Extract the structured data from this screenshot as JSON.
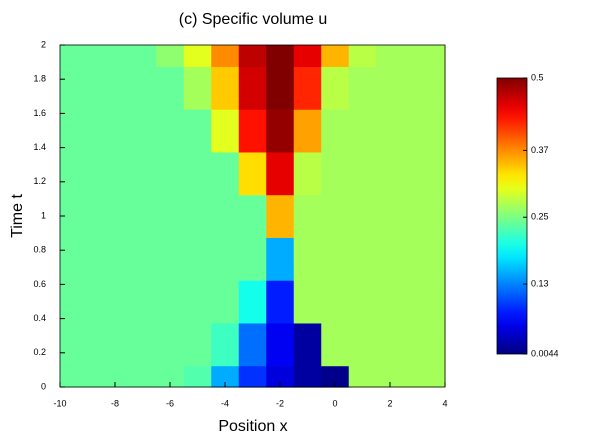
{
  "chart_data": {
    "type": "heatmap",
    "title": "(c) Specific volume u",
    "x_label": "Position x",
    "y_label": "Time t",
    "x": [
      -10,
      -9,
      -8,
      -7,
      -6,
      -5,
      -4,
      -3,
      -2,
      -1,
      0,
      1,
      2,
      3,
      4
    ],
    "y": [
      0,
      0.25,
      0.5,
      0.75,
      1,
      1.25,
      1.5,
      1.75,
      2
    ],
    "z": [
      [
        0.24,
        0.24,
        0.24,
        0.24,
        0.24,
        0.23,
        0.15,
        0.09,
        0.05,
        0.02,
        0.01,
        0.27,
        0.27,
        0.27,
        0.27
      ],
      [
        0.24,
        0.24,
        0.24,
        0.24,
        0.24,
        0.24,
        0.22,
        0.12,
        0.06,
        0.02,
        0.27,
        0.27,
        0.27,
        0.27,
        0.27
      ],
      [
        0.24,
        0.24,
        0.24,
        0.24,
        0.24,
        0.24,
        0.24,
        0.2,
        0.08,
        0.27,
        0.27,
        0.27,
        0.27,
        0.27,
        0.27
      ],
      [
        0.24,
        0.24,
        0.24,
        0.24,
        0.24,
        0.24,
        0.24,
        0.24,
        0.15,
        0.27,
        0.27,
        0.27,
        0.27,
        0.27,
        0.27
      ],
      [
        0.24,
        0.24,
        0.24,
        0.24,
        0.24,
        0.24,
        0.24,
        0.24,
        0.35,
        0.27,
        0.27,
        0.27,
        0.27,
        0.27,
        0.27
      ],
      [
        0.24,
        0.24,
        0.24,
        0.24,
        0.24,
        0.24,
        0.24,
        0.33,
        0.45,
        0.28,
        0.27,
        0.27,
        0.27,
        0.27,
        0.27
      ],
      [
        0.24,
        0.24,
        0.24,
        0.24,
        0.24,
        0.24,
        0.3,
        0.43,
        0.49,
        0.36,
        0.27,
        0.27,
        0.27,
        0.27,
        0.27
      ],
      [
        0.24,
        0.24,
        0.24,
        0.24,
        0.24,
        0.27,
        0.34,
        0.46,
        0.5,
        0.42,
        0.28,
        0.27,
        0.27,
        0.27,
        0.27
      ],
      [
        0.24,
        0.24,
        0.24,
        0.24,
        0.26,
        0.3,
        0.37,
        0.47,
        0.5,
        0.45,
        0.35,
        0.28,
        0.27,
        0.27,
        0.27
      ]
    ],
    "colormap": "jet",
    "xlim": [
      -10,
      4
    ],
    "xticks": [
      -10,
      -8,
      -6,
      -4,
      -2,
      0,
      2,
      4
    ],
    "ylim": [
      0,
      2
    ],
    "yticks": [
      0,
      0.2,
      0.4,
      0.6,
      0.8,
      1,
      1.2,
      1.4,
      1.6,
      1.8,
      2
    ],
    "clim": [
      0.0044,
      0.5
    ],
    "cticks": [
      0.0044,
      0.13,
      0.25,
      0.37,
      0.5
    ]
  }
}
